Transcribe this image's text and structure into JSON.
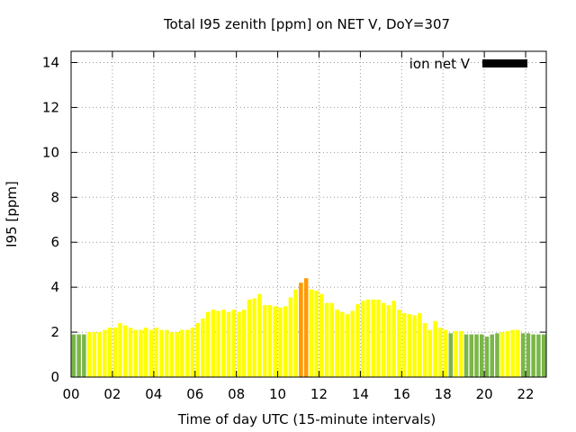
{
  "chart_data": {
    "type": "bar",
    "title": "Total I95 zenith [ppm] on NET V, DoY=307",
    "xlabel": "Time of day UTC (15-minute intervals)",
    "ylabel": "I95 [ppm]",
    "legend": {
      "label": "ion net V",
      "position": "top-right"
    },
    "xlim": [
      0,
      23
    ],
    "ylim": [
      0,
      14.5
    ],
    "xticks": [
      "00",
      "02",
      "04",
      "06",
      "08",
      "10",
      "12",
      "14",
      "16",
      "18",
      "20",
      "22"
    ],
    "yticks": [
      "0",
      "2",
      "4",
      "6",
      "8",
      "10",
      "12",
      "14"
    ],
    "grid": true,
    "colors": {
      "low": "#7ab648",
      "mid": "#ffff00",
      "high": "#ff9900",
      "legend": "#000000"
    },
    "interval_hours": 0.25,
    "values": [
      1.9,
      1.9,
      1.9,
      2.0,
      2.0,
      2.0,
      2.1,
      2.2,
      2.2,
      2.4,
      2.3,
      2.2,
      2.1,
      2.1,
      2.2,
      2.1,
      2.2,
      2.1,
      2.1,
      2.0,
      2.0,
      2.1,
      2.1,
      2.2,
      2.4,
      2.6,
      2.9,
      3.0,
      2.95,
      3.0,
      2.9,
      3.0,
      2.9,
      3.0,
      3.45,
      3.5,
      3.7,
      3.2,
      3.2,
      3.15,
      3.1,
      3.15,
      3.55,
      3.9,
      4.2,
      4.4,
      3.9,
      3.85,
      3.7,
      3.3,
      3.3,
      3.0,
      2.9,
      2.8,
      2.95,
      3.25,
      3.4,
      3.45,
      3.45,
      3.45,
      3.3,
      3.2,
      3.4,
      3.0,
      2.85,
      2.8,
      2.75,
      2.85,
      2.4,
      2.1,
      2.5,
      2.2,
      2.1,
      1.95,
      2.05,
      2.05,
      1.9,
      1.9,
      1.9,
      1.9,
      1.8,
      1.9,
      1.95,
      2.0,
      2.05,
      2.1,
      2.1,
      1.95,
      1.95,
      1.9,
      1.9,
      1.9
    ],
    "series_colors": [
      "low",
      "low",
      "low",
      "mid",
      "mid",
      "mid",
      "mid",
      "mid",
      "mid",
      "mid",
      "mid",
      "mid",
      "mid",
      "mid",
      "mid",
      "mid",
      "mid",
      "mid",
      "mid",
      "mid",
      "mid",
      "mid",
      "mid",
      "mid",
      "mid",
      "mid",
      "mid",
      "mid",
      "mid",
      "mid",
      "mid",
      "mid",
      "mid",
      "mid",
      "mid",
      "mid",
      "mid",
      "mid",
      "mid",
      "mid",
      "mid",
      "mid",
      "mid",
      "mid",
      "high",
      "high",
      "mid",
      "mid",
      "mid",
      "mid",
      "mid",
      "mid",
      "mid",
      "mid",
      "mid",
      "mid",
      "mid",
      "mid",
      "mid",
      "mid",
      "mid",
      "mid",
      "mid",
      "mid",
      "mid",
      "mid",
      "mid",
      "mid",
      "mid",
      "mid",
      "mid",
      "mid",
      "mid",
      "low",
      "mid",
      "mid",
      "low",
      "low",
      "low",
      "low",
      "low",
      "low",
      "low",
      "mid",
      "mid",
      "mid",
      "mid",
      "low",
      "low",
      "low",
      "low",
      "low"
    ]
  }
}
